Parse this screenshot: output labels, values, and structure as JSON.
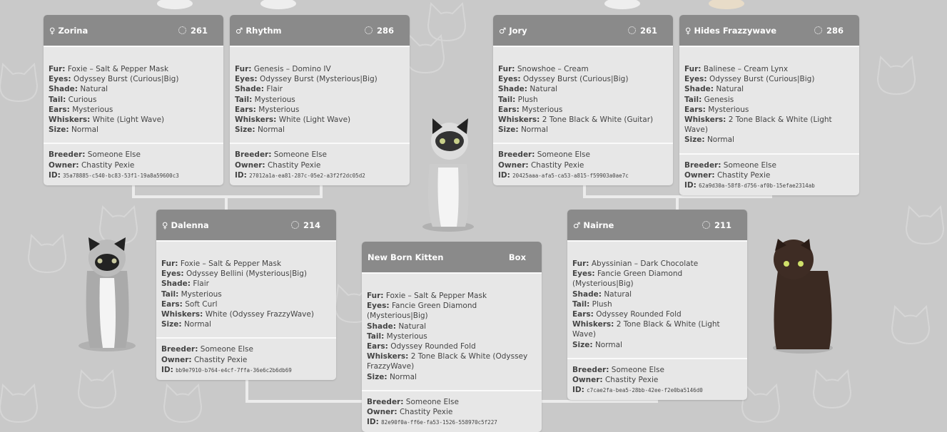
{
  "cards": [
    {
      "gender": "♀",
      "name": "Zorina",
      "score": 261,
      "traits": [
        {
          "label": "Fur:",
          "value": "Foxie – Salt & Pepper Mask"
        },
        {
          "label": "Eyes:",
          "value": "Odyssey Burst (Curious|Big)"
        },
        {
          "label": "Shade:",
          "value": "Natural"
        },
        {
          "label": "Tail:",
          "value": "Curious"
        },
        {
          "label": "Ears:",
          "value": "Mysterious"
        },
        {
          "label": "Whiskers:",
          "value": "White (Light Wave)"
        },
        {
          "label": "Size:",
          "value": "Normal"
        }
      ],
      "footer": [
        {
          "label": "Breeder:",
          "value": "Someone Else"
        },
        {
          "label": "Owner:",
          "value": "Chastity Pexie"
        },
        {
          "label": "ID:",
          "value": "35a78885-c540-bc83-53f1-19a8a59600c3"
        }
      ]
    },
    {
      "gender": "♂",
      "name": "Rhythm",
      "score": 286,
      "traits": [
        {
          "label": "Fur:",
          "value": "Genesis – Domino IV"
        },
        {
          "label": "Eyes:",
          "value": "Odyssey Burst (Mysterious|Big)"
        },
        {
          "label": "Shade:",
          "value": "Flair"
        },
        {
          "label": "Tail:",
          "value": "Mysterious"
        },
        {
          "label": "Ears:",
          "value": "Mysterious"
        },
        {
          "label": "Whiskers:",
          "value": "White (Light Wave)"
        },
        {
          "label": "Size:",
          "value": "Normal"
        }
      ],
      "footer": [
        {
          "label": "Breeder:",
          "value": "Someone Else"
        },
        {
          "label": "Owner:",
          "value": "Chastity Pexie"
        },
        {
          "label": "ID:",
          "value": "27012a1a-ea81-287c-05e2-a3f2f2dc05d2"
        }
      ]
    },
    {
      "gender": "♂",
      "name": "Jory",
      "score": 261,
      "traits": [
        {
          "label": "Fur:",
          "value": "Snowshoe – Cream"
        },
        {
          "label": "Eyes:",
          "value": "Odyssey Burst (Curious|Big)"
        },
        {
          "label": "Shade:",
          "value": "Natural"
        },
        {
          "label": "Tail:",
          "value": "Plush"
        },
        {
          "label": "Ears:",
          "value": "Mysterious"
        },
        {
          "label": "Whiskers:",
          "value": "2 Tone Black & White (Guitar)"
        },
        {
          "label": "Size:",
          "value": "Normal"
        }
      ],
      "footer": [
        {
          "label": "Breeder:",
          "value": "Someone Else"
        },
        {
          "label": "Owner:",
          "value": "Chastity Pexie"
        },
        {
          "label": "ID:",
          "value": "20425aaa-afa5-ca53-a815-f59903a0ae7c"
        }
      ]
    },
    {
      "gender": "♀",
      "name": "Hides Frazzywave",
      "score": 286,
      "traits": [
        {
          "label": "Fur:",
          "value": "Balinese – Cream Lynx"
        },
        {
          "label": "Eyes:",
          "value": "Odyssey Burst (Curious|Big)"
        },
        {
          "label": "Shade:",
          "value": "Natural"
        },
        {
          "label": "Tail:",
          "value": "Genesis"
        },
        {
          "label": "Ears:",
          "value": "Mysterious"
        },
        {
          "label": "Whiskers:",
          "value": "2 Tone Black & White (Light Wave)"
        },
        {
          "label": "Size:",
          "value": "Normal"
        }
      ],
      "footer": [
        {
          "label": "Breeder:",
          "value": "Someone Else"
        },
        {
          "label": "Owner:",
          "value": "Chastity Pexie"
        },
        {
          "label": "ID:",
          "value": "62a9d30a-58f8-d756-af0b-15efae2314ab"
        }
      ]
    },
    {
      "gender": "♀",
      "name": "Dalenna",
      "score": 214,
      "traits": [
        {
          "label": "Fur:",
          "value": "Foxie – Salt & Pepper Mask"
        },
        {
          "label": "Eyes:",
          "value": "Odyssey Bellini (Mysterious|Big)"
        },
        {
          "label": "Shade:",
          "value": "Flair"
        },
        {
          "label": "Tail:",
          "value": "Mysterious"
        },
        {
          "label": "Ears:",
          "value": "Soft Curl"
        },
        {
          "label": "Whiskers:",
          "value": "White (Odyssey FrazzyWave)"
        },
        {
          "label": "Size:",
          "value": "Normal"
        }
      ],
      "footer": [
        {
          "label": "Breeder:",
          "value": "Someone Else"
        },
        {
          "label": "Owner:",
          "value": "Chastity Pexie"
        },
        {
          "label": "ID:",
          "value": "bb9e7910-b764-e4cf-7ffa-36e6c2b6db69"
        }
      ]
    },
    {
      "gender": "♂",
      "name": "Nairne",
      "score": 211,
      "traits": [
        {
          "label": "Fur:",
          "value": "Abyssinian – Dark Chocolate"
        },
        {
          "label": "Eyes:",
          "value": "Fancie Green Diamond (Mysterious|Big)"
        },
        {
          "label": "Shade:",
          "value": "Natural"
        },
        {
          "label": "Tail:",
          "value": "Plush"
        },
        {
          "label": "Ears:",
          "value": "Odyssey Rounded Fold"
        },
        {
          "label": "Whiskers:",
          "value": "2 Tone Black & White (Light Wave)"
        },
        {
          "label": "Size:",
          "value": "Normal"
        }
      ],
      "footer": [
        {
          "label": "Breeder:",
          "value": "Someone Else"
        },
        {
          "label": "Owner:",
          "value": "Chastity Pexie"
        },
        {
          "label": "ID:",
          "value": "c7cae2fa-bea5-28bb-42ee-f2e0ba5146d0"
        }
      ]
    },
    {
      "name": "New Born Kitten",
      "tag": "Box",
      "traits": [
        {
          "label": "Fur:",
          "value": "Foxie – Salt & Pepper Mask"
        },
        {
          "label": "Eyes:",
          "value": "Fancie Green Diamond (Mysterious|Big)"
        },
        {
          "label": "Shade:",
          "value": "Natural"
        },
        {
          "label": "Tail:",
          "value": "Mysterious"
        },
        {
          "label": "Ears:",
          "value": "Odyssey Rounded Fold"
        },
        {
          "label": "Whiskers:",
          "value": "2 Tone Black & White (Odyssey FrazzyWave)"
        },
        {
          "label": "Size:",
          "value": "Normal"
        }
      ],
      "footer": [
        {
          "label": "Breeder:",
          "value": "Someone Else"
        },
        {
          "label": "Owner:",
          "value": "Chastity Pexie"
        },
        {
          "label": "ID:",
          "value": "82e90f0a-ff6e-fa53-1526-558970c5f227"
        }
      ]
    }
  ]
}
